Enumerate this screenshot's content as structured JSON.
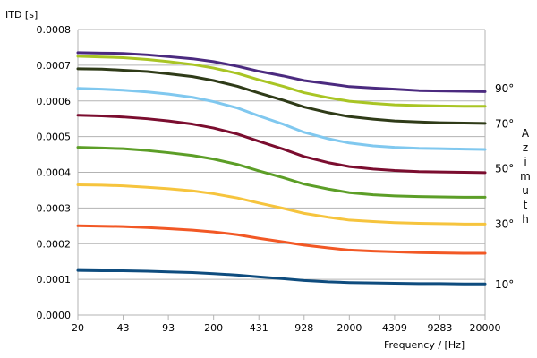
{
  "chart_data": {
    "type": "line",
    "title": "",
    "ylabel": "ITD [s]",
    "xlabel": "Frequency / [Hz]",
    "legend_title": "Azimuth",
    "x_scale": "log",
    "ylim": [
      0,
      0.0008
    ],
    "y_ticks": [
      "0.0000",
      "0.0001",
      "0.0002",
      "0.0003",
      "0.0004",
      "0.0005",
      "0.0006",
      "0.0007",
      "0.0008"
    ],
    "x_ticks": [
      "20",
      "43",
      "93",
      "200",
      "431",
      "928",
      "2000",
      "4309",
      "9283",
      "20000"
    ],
    "grid": "horizontal",
    "x": [
      20,
      30,
      43,
      65,
      93,
      140,
      200,
      300,
      431,
      650,
      928,
      1400,
      2000,
      3000,
      4309,
      6500,
      9283,
      14000,
      20000
    ],
    "series": [
      {
        "color": "#4b2a7f",
        "values": [
          0.000735,
          0.000734,
          0.000733,
          0.000729,
          0.000724,
          0.000718,
          0.00071,
          0.000697,
          0.000683,
          0.00067,
          0.000657,
          0.000648,
          0.00064,
          0.000636,
          0.000633,
          0.000629,
          0.000628,
          0.000627,
          0.000626
        ]
      },
      {
        "color": "#a9c524",
        "values": [
          0.000725,
          0.000723,
          0.000721,
          0.000716,
          0.00071,
          0.000702,
          0.000692,
          0.000677,
          0.000659,
          0.000641,
          0.000623,
          0.000609,
          0.000599,
          0.000593,
          0.000589,
          0.000587,
          0.000586,
          0.000585,
          0.000585
        ]
      },
      {
        "color": "#2f3b18",
        "values": [
          0.00069,
          0.000689,
          0.000686,
          0.000682,
          0.000676,
          0.000668,
          0.000657,
          0.000641,
          0.000622,
          0.000602,
          0.000583,
          0.000567,
          0.000556,
          0.000549,
          0.000544,
          0.000541,
          0.000539,
          0.000538,
          0.000537
        ]
      },
      {
        "color": "#80c8ef",
        "values": [
          0.000635,
          0.000633,
          0.00063,
          0.000625,
          0.000619,
          0.00061,
          0.000598,
          0.00058,
          0.000558,
          0.000535,
          0.000512,
          0.000494,
          0.000482,
          0.000474,
          0.00047,
          0.000467,
          0.000466,
          0.000465,
          0.000464
        ]
      },
      {
        "color": "#7b0d2f",
        "values": [
          0.00056,
          0.000558,
          0.000555,
          0.00055,
          0.000544,
          0.000535,
          0.000524,
          0.000507,
          0.000487,
          0.000465,
          0.000444,
          0.000427,
          0.000416,
          0.000409,
          0.000405,
          0.000402,
          0.000401,
          0.0004,
          0.000399
        ]
      },
      {
        "color": "#5c9e27",
        "values": [
          0.00047,
          0.000468,
          0.000466,
          0.000461,
          0.000455,
          0.000447,
          0.000437,
          0.000422,
          0.000404,
          0.000385,
          0.000367,
          0.000353,
          0.000343,
          0.000337,
          0.000334,
          0.000332,
          0.000331,
          0.00033,
          0.00033
        ]
      },
      {
        "color": "#f6c43d",
        "values": [
          0.000365,
          0.000364,
          0.000362,
          0.000358,
          0.000354,
          0.000348,
          0.00034,
          0.000328,
          0.000314,
          0.000299,
          0.000285,
          0.000274,
          0.000266,
          0.000262,
          0.000259,
          0.000257,
          0.000256,
          0.000255,
          0.000255
        ]
      },
      {
        "color": "#f25825",
        "values": [
          0.00025,
          0.000249,
          0.000248,
          0.000245,
          0.000242,
          0.000238,
          0.000233,
          0.000225,
          0.000215,
          0.000205,
          0.000196,
          0.000188,
          0.000182,
          0.000179,
          0.000177,
          0.000175,
          0.000174,
          0.000173,
          0.000173
        ]
      },
      {
        "color": "#0e4c7e",
        "values": [
          0.000125,
          0.000124,
          0.000124,
          0.000123,
          0.000121,
          0.000119,
          0.000116,
          0.000112,
          0.000107,
          0.000102,
          9.7e-05,
          9.3e-05,
          9.1e-05,
          9e-05,
          8.9e-05,
          8.8e-05,
          8.8e-05,
          8.7e-05,
          8.7e-05
        ]
      }
    ],
    "annotations": [
      {
        "text": "90°",
        "y": 0.000635
      },
      {
        "text": "70°",
        "y": 0.000535
      },
      {
        "text": "50°",
        "y": 0.00041
      },
      {
        "text": "30°",
        "y": 0.000255
      },
      {
        "text": "10°",
        "y": 8.5e-05
      }
    ]
  }
}
